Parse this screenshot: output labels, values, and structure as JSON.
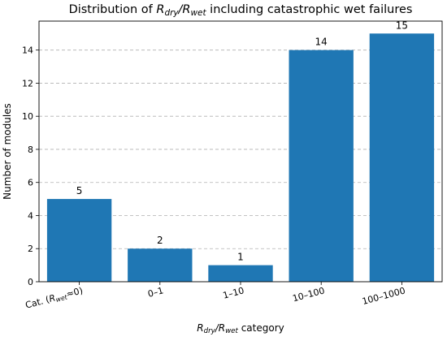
{
  "chart_data": {
    "type": "bar",
    "title": "Distribution of R_dry/R_wet including catastrophic wet failures",
    "title_parts": [
      {
        "text": "Distribution of ",
        "style": "normal"
      },
      {
        "text": "R",
        "style": "italic"
      },
      {
        "text": "dry",
        "style": "sub"
      },
      {
        "text": "/",
        "style": "italic"
      },
      {
        "text": "R",
        "style": "italic"
      },
      {
        "text": "wet",
        "style": "sub"
      },
      {
        "text": " including catastrophic wet failures",
        "style": "normal"
      }
    ],
    "categories": [
      "Cat. (R_wet≈0)",
      "0–1",
      "1–10",
      "10–100",
      "100–1000"
    ],
    "category_parts": [
      [
        {
          "text": "Cat. (",
          "style": "normal"
        },
        {
          "text": "R",
          "style": "italic"
        },
        {
          "text": "wet",
          "style": "sub"
        },
        {
          "text": "≈0)",
          "style": "normal"
        }
      ],
      [
        {
          "text": "0–1",
          "style": "normal"
        }
      ],
      [
        {
          "text": "1–10",
          "style": "normal"
        }
      ],
      [
        {
          "text": "10–100",
          "style": "normal"
        }
      ],
      [
        {
          "text": "100–1000",
          "style": "normal"
        }
      ]
    ],
    "values": [
      5,
      2,
      1,
      14,
      15
    ],
    "data_labels": [
      "5",
      "2",
      "1",
      "14",
      "15"
    ],
    "xlabel": "R_dry/R_wet category",
    "xlabel_parts": [
      {
        "text": "R",
        "style": "italic"
      },
      {
        "text": "dry",
        "style": "sub"
      },
      {
        "text": "/",
        "style": "italic"
      },
      {
        "text": "R",
        "style": "italic"
      },
      {
        "text": "wet",
        "style": "sub"
      },
      {
        "text": " category",
        "style": "normal"
      }
    ],
    "ylabel": "Number of modules",
    "ylim": [
      0,
      15.75
    ],
    "yticks": [
      0,
      2,
      4,
      6,
      8,
      10,
      12,
      14
    ],
    "grid": "y-dashed",
    "bar_color": "#1f77b4",
    "grid_color": "#b0b0b0",
    "axis_color": "#000000"
  }
}
